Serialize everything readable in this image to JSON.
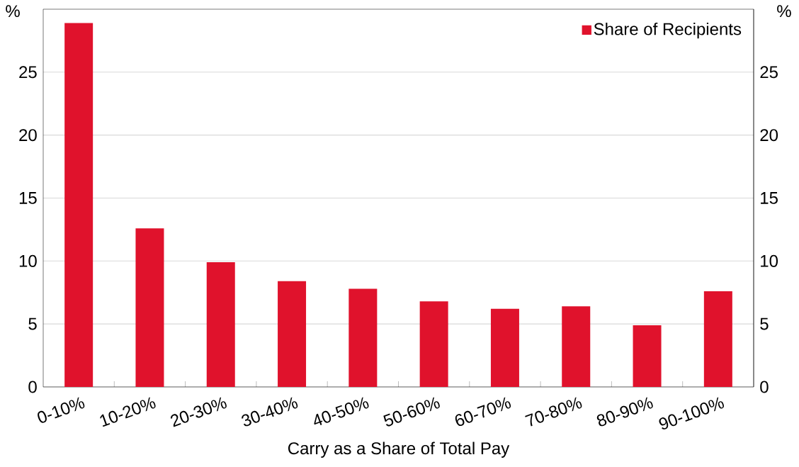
{
  "chart_data": {
    "type": "bar",
    "xlabel": "Carry as a Share of Total Pay",
    "ylabel": "%",
    "y2label": "%",
    "categories": [
      "0-10%",
      "10-20%",
      "20-30%",
      "30-40%",
      "40-50%",
      "50-60%",
      "60-70%",
      "70-80%",
      "80-90%",
      "90-100%"
    ],
    "series": [
      {
        "name": "Share of Recipients",
        "color": "#e0122c",
        "values": [
          28.9,
          12.6,
          9.9,
          8.4,
          7.8,
          6.8,
          6.2,
          6.4,
          4.9,
          7.6
        ]
      }
    ],
    "ylim": [
      0,
      30
    ],
    "yticks": [
      0,
      5,
      10,
      15,
      20,
      25
    ],
    "y2lim": [
      0,
      30
    ],
    "y2ticks": [
      0,
      5,
      10,
      15,
      20,
      25
    ],
    "grid": "y",
    "legend": "top right"
  }
}
